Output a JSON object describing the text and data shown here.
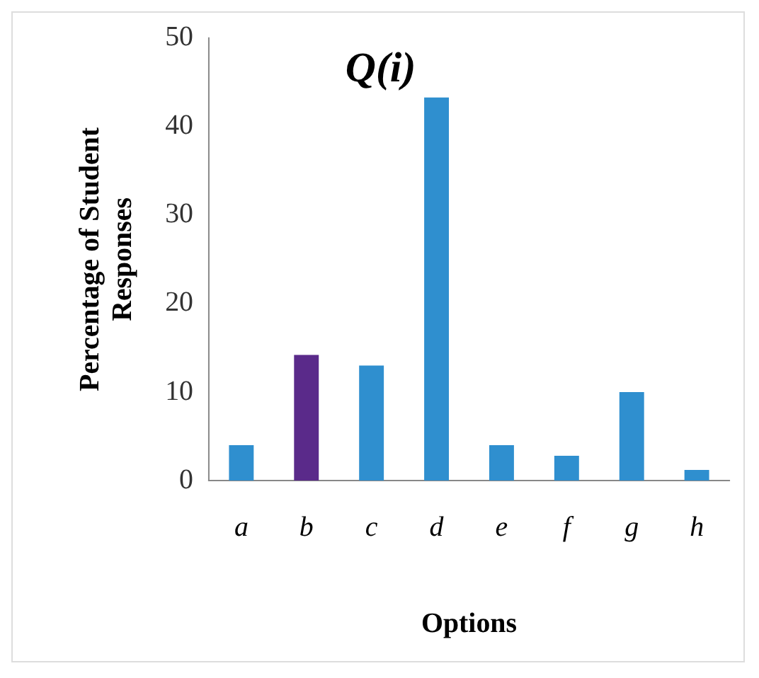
{
  "chart_data": {
    "type": "bar",
    "title": "Q(i)",
    "xlabel": "Options",
    "ylabel": "Percentage of Student Responses",
    "categories": [
      "a",
      "b",
      "c",
      "d",
      "e",
      "f",
      "g",
      "h"
    ],
    "values": [
      4,
      14.2,
      13,
      43.3,
      4,
      2.8,
      10,
      1.2
    ],
    "colors": [
      "#2f8fcf",
      "#5a2a8a",
      "#2f8fcf",
      "#2f8fcf",
      "#2f8fcf",
      "#2f8fcf",
      "#2f8fcf",
      "#2f8fcf"
    ],
    "ylim": [
      0,
      50
    ],
    "yticks": [
      0,
      10,
      20,
      30,
      40,
      50
    ],
    "grid": false,
    "legend": false
  }
}
